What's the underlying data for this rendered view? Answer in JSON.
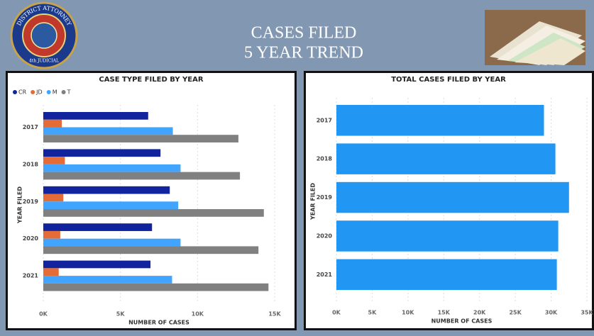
{
  "header": {
    "title_lines": [
      "CASES FILED",
      "5 YEAR TREND"
    ],
    "logo_text": "DISTRICT ATTORNEY",
    "logo_subtext": "4th JUDICIAL"
  },
  "chart_data": [
    {
      "type": "bar",
      "orientation": "horizontal",
      "title": "CASE TYPE FILED BY YEAR",
      "x_label": "NUMBER OF CASES",
      "y_label": "YEAR FILED",
      "categories": [
        "2017",
        "2018",
        "2019",
        "2020",
        "2021"
      ],
      "series": [
        {
          "name": "CR",
          "color": "#12239e",
          "values": [
            6800,
            7600,
            8200,
            7050,
            6950
          ]
        },
        {
          "name": "JD",
          "color": "#e66c37",
          "values": [
            1200,
            1400,
            1300,
            1100,
            1000
          ]
        },
        {
          "name": "M",
          "color": "#41a4ff",
          "values": [
            8400,
            8900,
            8750,
            8900,
            8350
          ]
        },
        {
          "name": "T",
          "color": "#808080",
          "values": [
            12650,
            12750,
            14300,
            13950,
            14600
          ]
        }
      ],
      "xlim": [
        0,
        15000
      ],
      "xticks": [
        {
          "value": 0,
          "label": "0K"
        },
        {
          "value": 5000,
          "label": "5K"
        },
        {
          "value": 10000,
          "label": "10K"
        },
        {
          "value": 15000,
          "label": "15K"
        }
      ],
      "grid": true,
      "legend": "top-left"
    },
    {
      "type": "bar",
      "orientation": "horizontal",
      "title": "TOTAL CASES FILED BY YEAR",
      "x_label": "NUMBER OF CASES",
      "y_label": "YEAR FILED",
      "categories": [
        "2017",
        "2018",
        "2019",
        "2020",
        "2021"
      ],
      "values": [
        29000,
        30600,
        32500,
        31000,
        30800
      ],
      "color": "#2196f3",
      "xlim": [
        0,
        35000
      ],
      "xticks": [
        {
          "value": 0,
          "label": "0K"
        },
        {
          "value": 5000,
          "label": "5K"
        },
        {
          "value": 10000,
          "label": "10K"
        },
        {
          "value": 15000,
          "label": "15K"
        },
        {
          "value": 20000,
          "label": "20K"
        },
        {
          "value": 25000,
          "label": "25K"
        },
        {
          "value": 30000,
          "label": "30K"
        },
        {
          "value": 35000,
          "label": "35K"
        }
      ],
      "grid": true
    }
  ]
}
